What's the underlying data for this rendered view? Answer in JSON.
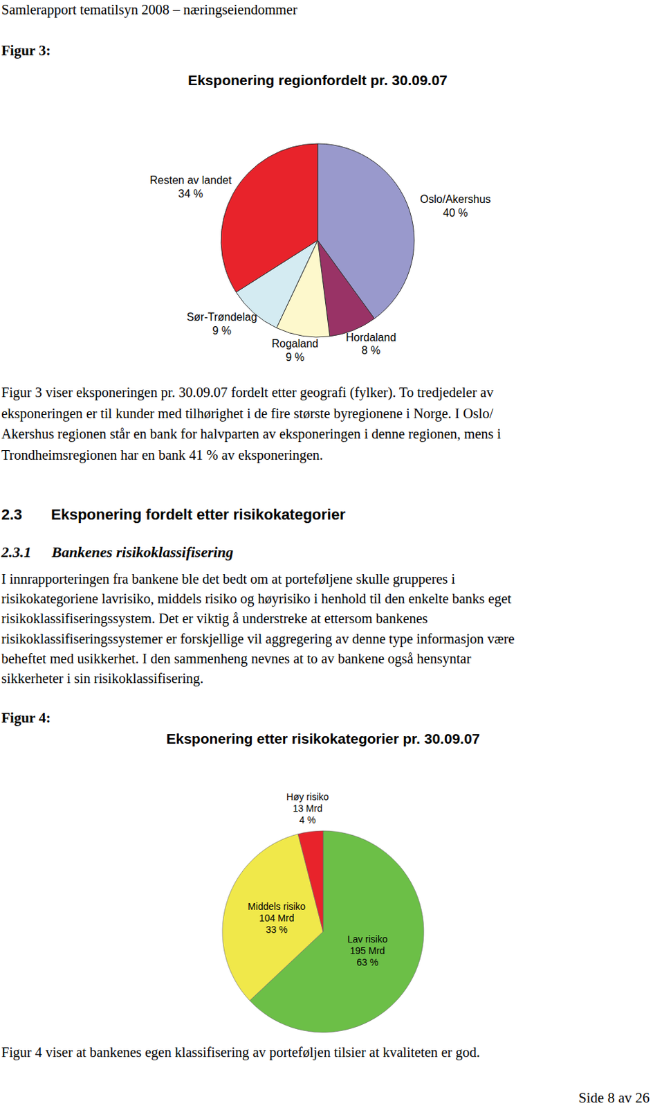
{
  "page": {
    "header": "Samlerapport tematilsyn 2008 – næringseiendommer",
    "figure_3_label": "Figur 3:",
    "paragraph_1": [
      "Figur 3 viser eksponeringen pr. 30.09.07 fordelt etter geografi (fylker). To tredjedeler av",
      "eksponeringen er til kunder med tilhørighet i de fire største byregionene i Norge. I Oslo/",
      "Akershus regionen står en bank for halvparten av eksponeringen i denne regionen, mens i",
      "Trondheimsregionen har en bank 41 % av eksponeringen."
    ],
    "section": {
      "number": "2.3",
      "title": "Eksponering fordelt etter risikokategorier"
    },
    "subsection": {
      "number": "2.3.1",
      "title": "Bankenes risikoklassifisering"
    },
    "paragraph_2": [
      "I innrapporteringen fra bankene ble det bedt om at porteføljene skulle grupperes i",
      "risikokategoriene lavrisiko, middels risiko og høyrisiko i henhold til den enkelte banks eget",
      "risikoklassifiseringssystem. Det er viktig å understreke at ettersom bankenes",
      "risikoklassifiseringssystemer er forskjellige vil aggregering av denne type informasjon være",
      "beheftet med usikkerhet. I den sammenheng nevnes at to av bankene også hensyntar",
      "sikkerheter i sin risikoklassifisering."
    ],
    "figure_4_label": "Figur 4:",
    "paragraph_3": "Figur 4 viser at bankenes egen klassifisering av porteføljen tilsier at kvaliteten er god.",
    "footer": "Side 8 av 26"
  },
  "chart_data": [
    {
      "type": "pie",
      "title": "Eksponering regionfordelt pr. 30.09.07",
      "categories": [
        "Oslo/Akershus",
        "Hordaland",
        "Rogaland",
        "Sør-Trøndelag",
        "Resten av landet"
      ],
      "values": [
        40,
        8,
        9,
        9,
        34
      ],
      "value_labels": [
        "40 %",
        "8 %",
        "9 %",
        "9 %",
        "34 %"
      ],
      "colors": [
        "#9999cc",
        "#993366",
        "#fdf8cc",
        "#d4ebf2",
        "#e8232b"
      ],
      "data_labels": true
    },
    {
      "type": "pie",
      "title": "Eksponering etter risikokategorier pr. 30.09.07",
      "categories": [
        "Lav risiko",
        "Middels risiko",
        "Høy risiko"
      ],
      "values": [
        63,
        33,
        4
      ],
      "value_labels": [
        "63 %",
        "33 %",
        "4 %"
      ],
      "amounts": [
        195,
        104,
        13
      ],
      "amount_labels": [
        "195 Mrd",
        "104 Mrd",
        "13 Mrd"
      ],
      "colors": [
        "#6cbf47",
        "#f0e84a",
        "#e8232b"
      ],
      "data_labels": true
    }
  ]
}
